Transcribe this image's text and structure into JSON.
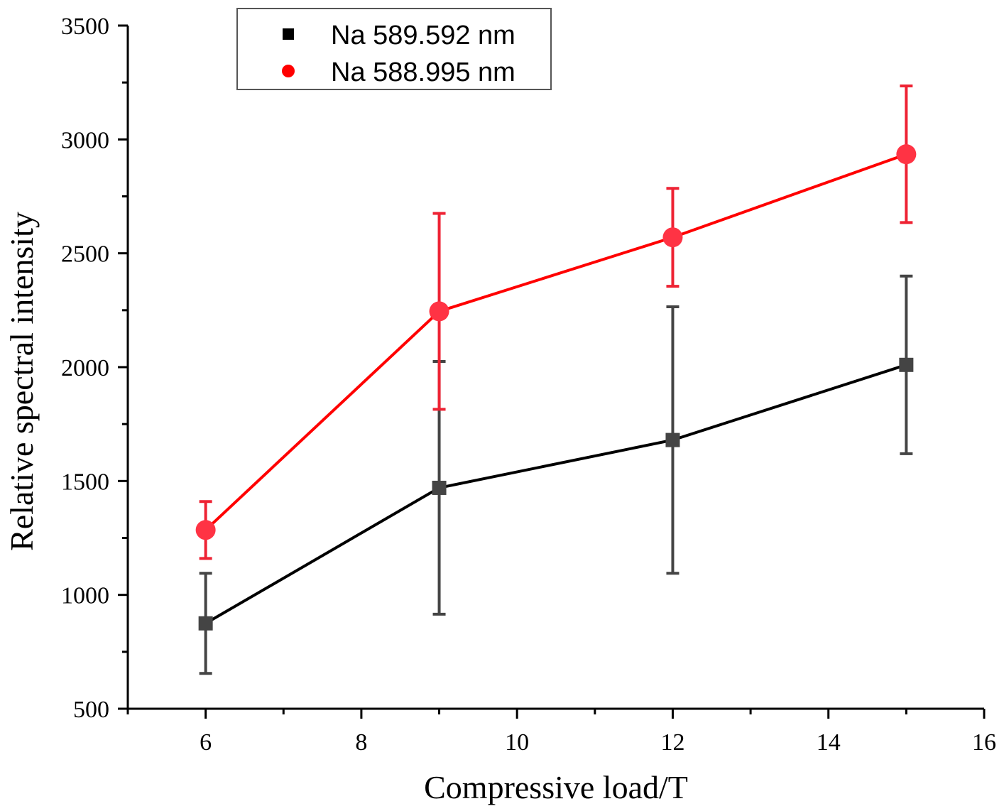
{
  "chart_data": {
    "type": "line",
    "title": "",
    "xlabel": "Compressive  load/T",
    "ylabel": "Relative spectral intensity",
    "xlim": [
      5,
      16
    ],
    "ylim": [
      500,
      3500
    ],
    "xticks": [
      6,
      8,
      10,
      12,
      14,
      16
    ],
    "yticks": [
      500,
      1000,
      1500,
      2000,
      2500,
      3000,
      3500
    ],
    "xtick_labels": [
      "6",
      "8",
      "10",
      "12",
      "14",
      "16"
    ],
    "ytick_labels": [
      "500",
      "1000",
      "1500",
      "2000",
      "2500",
      "3000",
      "3500"
    ],
    "grid": false,
    "legend_position": "top-left",
    "series": [
      {
        "name": "Na  589.592 nm",
        "marker": "square",
        "line_color": "#000000",
        "marker_color": "#444444",
        "error_color": "#444444",
        "x": [
          6,
          9,
          12,
          15
        ],
        "y": [
          875,
          1470,
          1680,
          2010
        ],
        "error": [
          220,
          555,
          585,
          390
        ]
      },
      {
        "name": "Na  588.995 nm",
        "marker": "circle",
        "line_color": "#ff0000",
        "marker_color": "#ff3344",
        "error_color": "#ee2233",
        "x": [
          6,
          9,
          12,
          15
        ],
        "y": [
          1285,
          2245,
          2570,
          2935
        ],
        "error": [
          125,
          430,
          215,
          300
        ]
      }
    ]
  }
}
